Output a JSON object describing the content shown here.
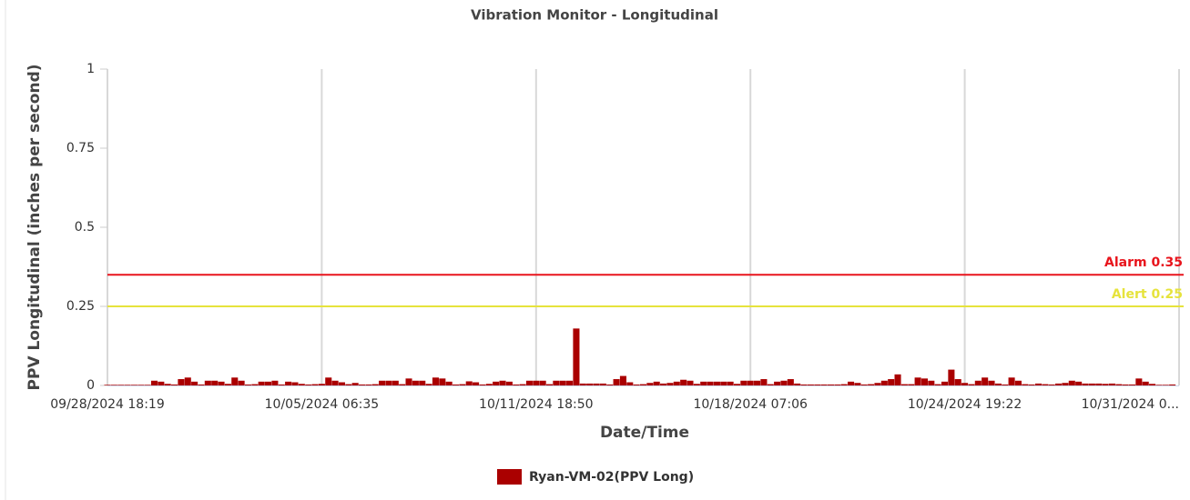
{
  "chart_data": {
    "type": "bar",
    "title": "Vibration Monitor - Longitudinal",
    "x_label": "Date/Time",
    "y_label": "PPV Longitudinal (inches per second)",
    "categories": [
      "09/28/2024 18:19",
      null,
      null,
      null,
      null,
      null,
      null,
      null,
      null,
      null,
      null,
      null,
      null,
      null,
      null,
      null,
      null,
      null,
      null,
      null,
      null,
      null,
      null,
      null,
      null,
      null,
      null,
      null,
      null,
      null,
      null,
      null,
      "10/05/2024 06:35",
      null,
      null,
      null,
      null,
      null,
      null,
      null,
      null,
      null,
      null,
      null,
      null,
      null,
      null,
      null,
      null,
      null,
      null,
      null,
      null,
      null,
      null,
      null,
      null,
      null,
      null,
      null,
      null,
      null,
      null,
      null,
      "10/11/2024 18:50",
      null,
      null,
      null,
      null,
      null,
      null,
      null,
      null,
      null,
      null,
      null,
      null,
      null,
      null,
      null,
      null,
      null,
      null,
      null,
      null,
      null,
      null,
      null,
      null,
      null,
      null,
      null,
      null,
      null,
      null,
      null,
      "10/18/2024 07:06",
      null,
      null,
      null,
      null,
      null,
      null,
      null,
      null,
      null,
      null,
      null,
      null,
      null,
      null,
      null,
      null,
      null,
      null,
      null,
      null,
      null,
      null,
      null,
      null,
      null,
      null,
      null,
      null,
      null,
      null,
      null,
      "10/24/2024 19:22",
      null,
      null,
      null,
      null,
      null,
      null,
      null,
      null,
      null,
      null,
      null,
      null,
      null,
      null,
      null,
      null,
      null,
      null,
      null,
      null,
      null,
      null,
      null,
      null,
      null,
      null,
      null,
      null,
      null,
      null,
      null,
      "10/31/2024 0..."
    ],
    "series": [
      {
        "name": "Ryan-VM-02(PPV Long)",
        "color": "#aa0000",
        "values": [
          0.002,
          0.002,
          0.002,
          0.002,
          0.002,
          0.002,
          0.002,
          0.015,
          0.012,
          0.005,
          0.003,
          0.02,
          0.025,
          0.012,
          0.003,
          0.015,
          0.015,
          0.012,
          0.005,
          0.025,
          0.015,
          0.003,
          0.004,
          0.012,
          0.012,
          0.015,
          0.003,
          0.012,
          0.01,
          0.005,
          0.003,
          0.004,
          0.005,
          0.025,
          0.015,
          0.01,
          0.004,
          0.008,
          0.003,
          0.003,
          0.004,
          0.015,
          0.015,
          0.015,
          0.004,
          0.022,
          0.015,
          0.015,
          0.005,
          0.025,
          0.022,
          0.012,
          0.003,
          0.004,
          0.013,
          0.01,
          0.003,
          0.005,
          0.012,
          0.015,
          0.012,
          0.003,
          0.004,
          0.015,
          0.015,
          0.015,
          0.004,
          0.015,
          0.015,
          0.015,
          0.18,
          0.006,
          0.006,
          0.006,
          0.006,
          0.003,
          0.02,
          0.03,
          0.01,
          0.003,
          0.004,
          0.008,
          0.012,
          0.006,
          0.008,
          0.012,
          0.018,
          0.015,
          0.005,
          0.012,
          0.012,
          0.012,
          0.012,
          0.012,
          0.005,
          0.015,
          0.015,
          0.015,
          0.02,
          0.004,
          0.012,
          0.015,
          0.02,
          0.006,
          0.003,
          0.003,
          0.003,
          0.003,
          0.003,
          0.003,
          0.004,
          0.012,
          0.008,
          0.003,
          0.004,
          0.008,
          0.015,
          0.02,
          0.035,
          0.004,
          0.004,
          0.025,
          0.022,
          0.015,
          0.004,
          0.012,
          0.05,
          0.02,
          0.008,
          0.004,
          0.015,
          0.025,
          0.015,
          0.006,
          0.003,
          0.025,
          0.015,
          0.004,
          0.003,
          0.006,
          0.004,
          0.003,
          0.006,
          0.008,
          0.015,
          0.012,
          0.006,
          0.006,
          0.006,
          0.005,
          0.006,
          0.004,
          0.003,
          0.003,
          0.022,
          0.012,
          0.005,
          0.002,
          0.002,
          0.003,
          null
        ]
      }
    ],
    "reference_lines": [
      {
        "label": "Alarm 0.35",
        "value": 0.35,
        "color": "#e8141c"
      },
      {
        "label": "Alert 0.25",
        "value": 0.25,
        "color": "#e6e33c"
      }
    ],
    "ylim": [
      0,
      1
    ],
    "yticks": [
      0,
      0.25,
      0.5,
      0.75,
      1
    ],
    "grid": true,
    "legend": "bottom"
  }
}
